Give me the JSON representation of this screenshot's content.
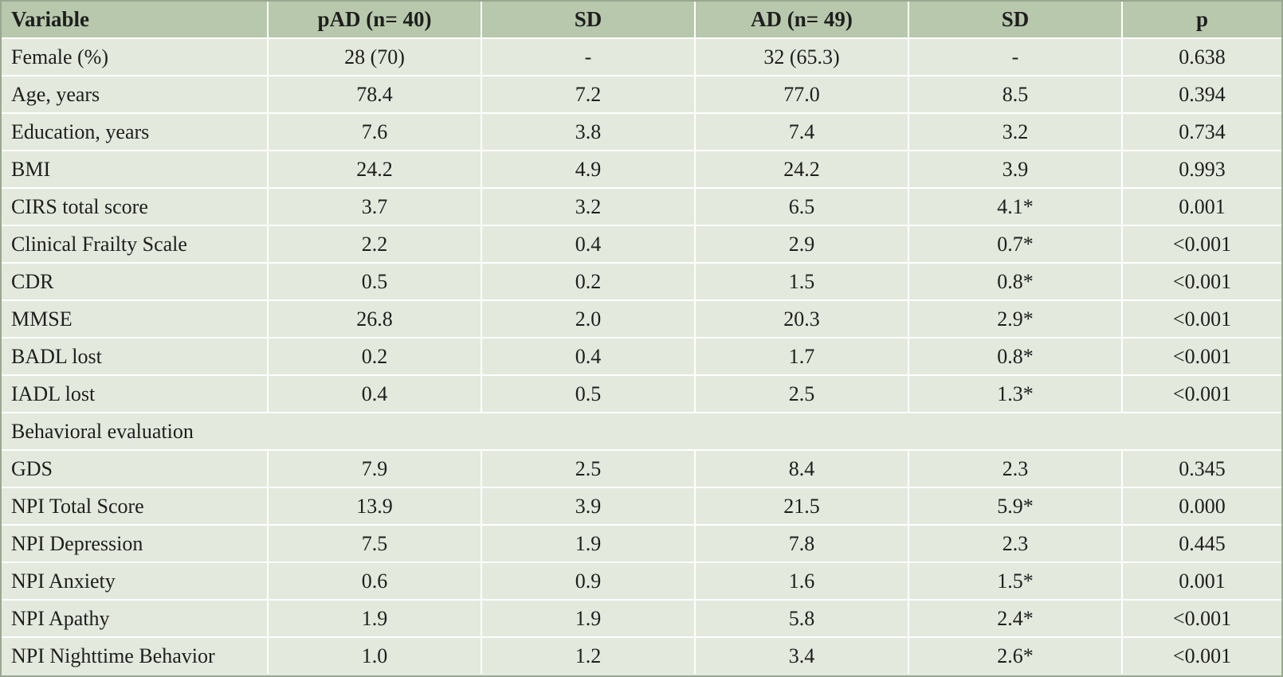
{
  "table": {
    "headers": [
      "Variable",
      "pAD (n= 40)",
      "SD",
      "AD (n= 49)",
      "SD",
      "p"
    ],
    "rows": [
      {
        "type": "data",
        "cells": [
          "Female (%)",
          "28 (70)",
          "-",
          "32 (65.3)",
          "-",
          "0.638"
        ]
      },
      {
        "type": "data",
        "cells": [
          "Age, years",
          "78.4",
          "7.2",
          "77.0",
          "8.5",
          "0.394"
        ]
      },
      {
        "type": "data",
        "cells": [
          "Education, years",
          "7.6",
          "3.8",
          "7.4",
          "3.2",
          "0.734"
        ]
      },
      {
        "type": "data",
        "cells": [
          "BMI",
          "24.2",
          "4.9",
          "24.2",
          "3.9",
          "0.993"
        ]
      },
      {
        "type": "data",
        "cells": [
          "CIRS total score",
          "3.7",
          "3.2",
          "6.5",
          "4.1*",
          "0.001"
        ]
      },
      {
        "type": "data",
        "cells": [
          "Clinical Frailty Scale",
          "2.2",
          "0.4",
          "2.9",
          "0.7*",
          "<0.001"
        ]
      },
      {
        "type": "data",
        "cells": [
          "CDR",
          "0.5",
          "0.2",
          "1.5",
          "0.8*",
          "<0.001"
        ]
      },
      {
        "type": "data",
        "cells": [
          "MMSE",
          "26.8",
          "2.0",
          "20.3",
          "2.9*",
          "<0.001"
        ]
      },
      {
        "type": "data",
        "cells": [
          "BADL lost",
          "0.2",
          "0.4",
          "1.7",
          "0.8*",
          "<0.001"
        ]
      },
      {
        "type": "data",
        "cells": [
          "IADL lost",
          "0.4",
          "0.5",
          "2.5",
          "1.3*",
          "<0.001"
        ]
      },
      {
        "type": "section",
        "label": "Behavioral evaluation"
      },
      {
        "type": "data",
        "cells": [
          "GDS",
          "7.9",
          "2.5",
          "8.4",
          "2.3",
          "0.345"
        ]
      },
      {
        "type": "data",
        "cells": [
          "NPI Total Score",
          "13.9",
          "3.9",
          "21.5",
          "5.9*",
          "0.000"
        ]
      },
      {
        "type": "data",
        "cells": [
          "NPI Depression",
          "7.5",
          "1.9",
          "7.8",
          "2.3",
          "0.445"
        ]
      },
      {
        "type": "data",
        "cells": [
          "NPI Anxiety",
          "0.6",
          "0.9",
          "1.6",
          "1.5*",
          "0.001"
        ]
      },
      {
        "type": "data",
        "cells": [
          "NPI Apathy",
          "1.9",
          "1.9",
          "5.8",
          "2.4*",
          "<0.001"
        ]
      },
      {
        "type": "data",
        "cells": [
          "NPI Nighttime Behavior",
          "1.0",
          "1.2",
          "3.4",
          "2.6*",
          "<0.001"
        ]
      }
    ]
  },
  "colors": {
    "header_bg": "#b8c8ac",
    "body_bg": "#e3e9dd",
    "grid_line": "#ffffff",
    "outer_border": "#9aa791"
  }
}
